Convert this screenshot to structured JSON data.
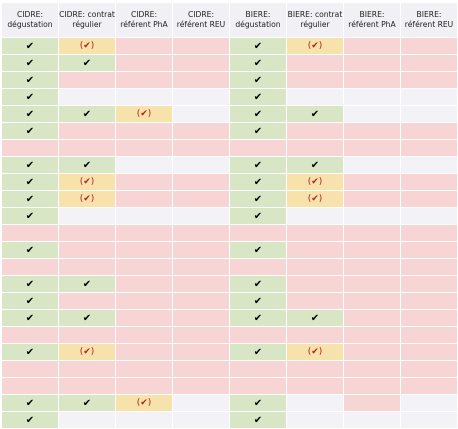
{
  "colors": {
    "green": "#d8e6c5",
    "red": "#f7d5d5",
    "yellow": "#f8e2ab",
    "white": "#f2f2f7",
    "header": "#f0f0f5"
  },
  "symbols": {
    "c": "✔",
    "p": "(✔)"
  },
  "table": {
    "headers": [
      "CIDRE: dégustation",
      "CIDRE: contrat régulier",
      "CIDRE: référent PhA",
      "CIDRE: référent REU",
      "BIERE: dégustation",
      "BIERE: contrat régulier",
      "BIERE: référent PhA",
      "BIERE: référent REU"
    ],
    "rows": [
      [
        [
          "g",
          "c"
        ],
        [
          "y",
          "p"
        ],
        [
          "r",
          ""
        ],
        [
          "r",
          ""
        ],
        [
          "g",
          "c"
        ],
        [
          "y",
          "p"
        ],
        [
          "r",
          ""
        ],
        [
          "r",
          ""
        ]
      ],
      [
        [
          "g",
          "c"
        ],
        [
          "g",
          "c"
        ],
        [
          "r",
          ""
        ],
        [
          "r",
          ""
        ],
        [
          "g",
          "c"
        ],
        [
          "r",
          ""
        ],
        [
          "r",
          ""
        ],
        [
          "r",
          ""
        ]
      ],
      [
        [
          "g",
          "c"
        ],
        [
          "r",
          ""
        ],
        [
          "r",
          ""
        ],
        [
          "r",
          ""
        ],
        [
          "g",
          "c"
        ],
        [
          "r",
          ""
        ],
        [
          "r",
          ""
        ],
        [
          "r",
          ""
        ]
      ],
      [
        [
          "g",
          "c"
        ],
        [
          "w",
          ""
        ],
        [
          "w",
          ""
        ],
        [
          "w",
          ""
        ],
        [
          "g",
          "c"
        ],
        [
          "w",
          ""
        ],
        [
          "w",
          ""
        ],
        [
          "w",
          ""
        ]
      ],
      [
        [
          "g",
          "c"
        ],
        [
          "g",
          "c"
        ],
        [
          "y",
          "p"
        ],
        [
          "w",
          ""
        ],
        [
          "g",
          "c"
        ],
        [
          "g",
          "c"
        ],
        [
          "w",
          ""
        ],
        [
          "w",
          ""
        ]
      ],
      [
        [
          "g",
          "c"
        ],
        [
          "r",
          ""
        ],
        [
          "r",
          ""
        ],
        [
          "r",
          ""
        ],
        [
          "g",
          "c"
        ],
        [
          "r",
          ""
        ],
        [
          "r",
          ""
        ],
        [
          "r",
          ""
        ]
      ],
      [
        [
          "r",
          ""
        ],
        [
          "r",
          ""
        ],
        [
          "r",
          ""
        ],
        [
          "r",
          ""
        ],
        [
          "r",
          ""
        ],
        [
          "r",
          ""
        ],
        [
          "r",
          ""
        ],
        [
          "r",
          ""
        ]
      ],
      [
        [
          "g",
          "c"
        ],
        [
          "g",
          "c"
        ],
        [
          "w",
          ""
        ],
        [
          "w",
          ""
        ],
        [
          "g",
          "c"
        ],
        [
          "g",
          "c"
        ],
        [
          "w",
          ""
        ],
        [
          "w",
          ""
        ]
      ],
      [
        [
          "g",
          "c"
        ],
        [
          "y",
          "p"
        ],
        [
          "r",
          ""
        ],
        [
          "r",
          ""
        ],
        [
          "g",
          "c"
        ],
        [
          "y",
          "p"
        ],
        [
          "r",
          ""
        ],
        [
          "r",
          ""
        ]
      ],
      [
        [
          "g",
          "c"
        ],
        [
          "y",
          "p"
        ],
        [
          "r",
          ""
        ],
        [
          "r",
          ""
        ],
        [
          "g",
          "c"
        ],
        [
          "y",
          "p"
        ],
        [
          "r",
          ""
        ],
        [
          "r",
          ""
        ]
      ],
      [
        [
          "g",
          "c"
        ],
        [
          "w",
          ""
        ],
        [
          "w",
          ""
        ],
        [
          "w",
          ""
        ],
        [
          "g",
          "c"
        ],
        [
          "w",
          ""
        ],
        [
          "w",
          ""
        ],
        [
          "w",
          ""
        ]
      ],
      [
        [
          "r",
          ""
        ],
        [
          "r",
          ""
        ],
        [
          "r",
          ""
        ],
        [
          "r",
          ""
        ],
        [
          "r",
          ""
        ],
        [
          "r",
          ""
        ],
        [
          "r",
          ""
        ],
        [
          "r",
          ""
        ]
      ],
      [
        [
          "g",
          "c"
        ],
        [
          "r",
          ""
        ],
        [
          "r",
          ""
        ],
        [
          "r",
          ""
        ],
        [
          "g",
          "c"
        ],
        [
          "r",
          ""
        ],
        [
          "r",
          ""
        ],
        [
          "r",
          ""
        ]
      ],
      [
        [
          "r",
          ""
        ],
        [
          "r",
          ""
        ],
        [
          "r",
          ""
        ],
        [
          "r",
          ""
        ],
        [
          "r",
          ""
        ],
        [
          "r",
          ""
        ],
        [
          "r",
          ""
        ],
        [
          "r",
          ""
        ]
      ],
      [
        [
          "g",
          "c"
        ],
        [
          "g",
          "c"
        ],
        [
          "r",
          ""
        ],
        [
          "r",
          ""
        ],
        [
          "g",
          "c"
        ],
        [
          "r",
          ""
        ],
        [
          "r",
          ""
        ],
        [
          "r",
          ""
        ]
      ],
      [
        [
          "g",
          "c"
        ],
        [
          "r",
          ""
        ],
        [
          "r",
          ""
        ],
        [
          "r",
          ""
        ],
        [
          "g",
          "c"
        ],
        [
          "r",
          ""
        ],
        [
          "r",
          ""
        ],
        [
          "r",
          ""
        ]
      ],
      [
        [
          "g",
          "c"
        ],
        [
          "g",
          "c"
        ],
        [
          "r",
          ""
        ],
        [
          "r",
          ""
        ],
        [
          "g",
          "c"
        ],
        [
          "g",
          "c"
        ],
        [
          "r",
          ""
        ],
        [
          "r",
          ""
        ]
      ],
      [
        [
          "r",
          ""
        ],
        [
          "r",
          ""
        ],
        [
          "r",
          ""
        ],
        [
          "r",
          ""
        ],
        [
          "r",
          ""
        ],
        [
          "r",
          ""
        ],
        [
          "r",
          ""
        ],
        [
          "r",
          ""
        ]
      ],
      [
        [
          "g",
          "c"
        ],
        [
          "y",
          "p"
        ],
        [
          "r",
          ""
        ],
        [
          "r",
          ""
        ],
        [
          "g",
          "c"
        ],
        [
          "y",
          "p"
        ],
        [
          "r",
          ""
        ],
        [
          "r",
          ""
        ]
      ],
      [
        [
          "r",
          ""
        ],
        [
          "r",
          ""
        ],
        [
          "r",
          ""
        ],
        [
          "r",
          ""
        ],
        [
          "r",
          ""
        ],
        [
          "r",
          ""
        ],
        [
          "r",
          ""
        ],
        [
          "r",
          ""
        ]
      ],
      [
        [
          "r",
          ""
        ],
        [
          "r",
          ""
        ],
        [
          "r",
          ""
        ],
        [
          "r",
          ""
        ],
        [
          "r",
          ""
        ],
        [
          "r",
          ""
        ],
        [
          "r",
          ""
        ],
        [
          "r",
          ""
        ]
      ],
      [
        [
          "g",
          "c"
        ],
        [
          "g",
          "c"
        ],
        [
          "y",
          "p"
        ],
        [
          "w",
          ""
        ],
        [
          "g",
          "c"
        ],
        [
          "w",
          ""
        ],
        [
          "r",
          ""
        ],
        [
          "w",
          ""
        ]
      ],
      [
        [
          "g",
          "c"
        ],
        [
          "w",
          ""
        ],
        [
          "w",
          ""
        ],
        [
          "w",
          ""
        ],
        [
          "g",
          "c"
        ],
        [
          "w",
          ""
        ],
        [
          "w",
          ""
        ],
        [
          "w",
          ""
        ]
      ]
    ]
  }
}
